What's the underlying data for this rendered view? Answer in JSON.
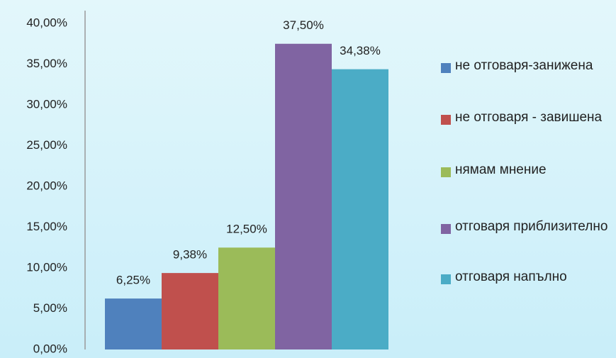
{
  "chart_data": {
    "type": "bar",
    "categories": [
      null
    ],
    "series": [
      {
        "name": "не отговаря-занижена",
        "color": "#4f81bd",
        "values": [
          6.25
        ],
        "value_labels": [
          "6,25%"
        ]
      },
      {
        "name": "не отговаря - завишена",
        "color": "#c0504d",
        "values": [
          9.38
        ],
        "value_labels": [
          "9,38%"
        ]
      },
      {
        "name": "нямам мнение",
        "color": "#9bbb59",
        "values": [
          12.5
        ],
        "value_labels": [
          "12,50%"
        ]
      },
      {
        "name": "отговаря приблизително",
        "color": "#8064a2",
        "values": [
          37.5
        ],
        "value_labels": [
          "37,50%"
        ]
      },
      {
        "name": "отговаря напълно",
        "color": "#4bacc6",
        "values": [
          34.38
        ],
        "value_labels": [
          "34,38%"
        ]
      }
    ],
    "ylim": [
      0,
      40
    ],
    "yticks": [
      {
        "value": 0,
        "label": "0,00%"
      },
      {
        "value": 5,
        "label": "5,00%"
      },
      {
        "value": 10,
        "label": "10,00%"
      },
      {
        "value": 15,
        "label": "15,00%"
      },
      {
        "value": 20,
        "label": "20,00%"
      },
      {
        "value": 25,
        "label": "25,00%"
      },
      {
        "value": 30,
        "label": "30,00%"
      },
      {
        "value": 35,
        "label": "35,00%"
      },
      {
        "value": 40,
        "label": "40,00%"
      }
    ],
    "legend": "right"
  }
}
